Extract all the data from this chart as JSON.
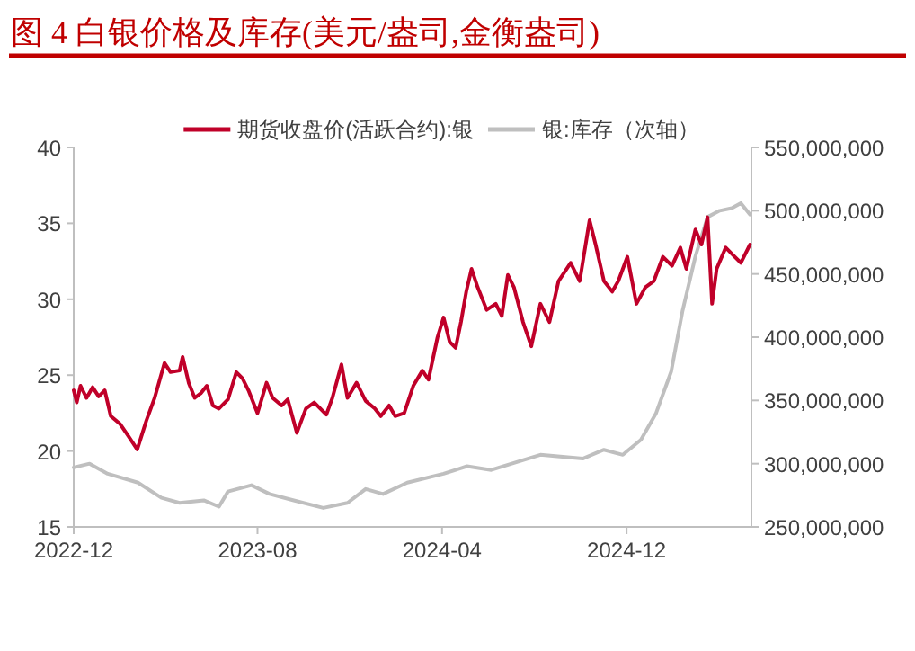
{
  "chart_data": {
    "type": "line",
    "title": "图 4 白银价格及库存(美元/盎司,金衡盎司)",
    "legend": "top",
    "grid": false,
    "marker": "none",
    "line_style": "solid",
    "xlim": [
      "2022-12-01",
      "2025-05-15"
    ],
    "xticks": [
      "2022-12",
      "2023-08",
      "2024-04",
      "2024-12"
    ],
    "ylim": [
      15,
      40
    ],
    "yticks": [
      15,
      20,
      25,
      30,
      35,
      40
    ],
    "y2lim": [
      250000000,
      550000000
    ],
    "y2ticks": [
      {
        "value": 250000000,
        "label": "250,000,000"
      },
      {
        "value": 300000000,
        "label": "300,000,000"
      },
      {
        "value": 350000000,
        "label": "350,000,000"
      },
      {
        "value": 400000000,
        "label": "400,000,000"
      },
      {
        "value": 450000000,
        "label": "450,000,000"
      },
      {
        "value": 500000000,
        "label": "500,000,000"
      },
      {
        "value": 550000000,
        "label": "550,000,000"
      }
    ],
    "series": [
      {
        "name": "期货收盘价(活跃合约):银",
        "color": "#c00029",
        "x": [
          "2022-12-01",
          "2022-12-05",
          "2022-12-10",
          "2022-12-18",
          "2022-12-26",
          "2023-01-03",
          "2023-01-11",
          "2023-01-19",
          "2023-01-31",
          "2023-02-11",
          "2023-02-23",
          "2023-03-07",
          "2023-03-18",
          "2023-03-31",
          "2023-04-08",
          "2023-04-20",
          "2023-04-24",
          "2023-05-02",
          "2023-05-10",
          "2023-05-18",
          "2023-05-26",
          "2023-06-03",
          "2023-06-11",
          "2023-06-23",
          "2023-07-04",
          "2023-07-12",
          "2023-07-20",
          "2023-08-01",
          "2023-08-13",
          "2023-08-21",
          "2023-09-02",
          "2023-09-10",
          "2023-09-22",
          "2023-10-04",
          "2023-10-15",
          "2023-10-23",
          "2023-10-31",
          "2023-11-08",
          "2023-11-20",
          "2023-11-28",
          "2023-12-10",
          "2023-12-22",
          "2024-01-03",
          "2024-01-11",
          "2024-01-22",
          "2024-01-30",
          "2024-02-11",
          "2024-02-23",
          "2024-03-06",
          "2024-03-14",
          "2024-03-26",
          "2024-04-03",
          "2024-04-11",
          "2024-04-19",
          "2024-04-26",
          "2024-05-03",
          "2024-05-10",
          "2024-05-18",
          "2024-05-30",
          "2024-06-11",
          "2024-06-19",
          "2024-06-27",
          "2024-07-05",
          "2024-07-17",
          "2024-07-28",
          "2024-08-09",
          "2024-08-21",
          "2024-09-02",
          "2024-09-18",
          "2024-09-30",
          "2024-10-13",
          "2024-10-21",
          "2024-11-01",
          "2024-11-12",
          "2024-11-20",
          "2024-12-02",
          "2024-12-14",
          "2024-12-26",
          "2025-01-06",
          "2025-01-18",
          "2025-01-30",
          "2025-02-10",
          "2025-02-18",
          "2025-03-02",
          "2025-03-10",
          "2025-03-18",
          "2025-03-24",
          "2025-03-30",
          "2025-04-11",
          "2025-04-23",
          "2025-05-01",
          "2025-05-13"
        ],
        "values": [
          24.0,
          23.2,
          24.3,
          23.5,
          24.2,
          23.6,
          24.0,
          22.3,
          21.8,
          21.0,
          20.1,
          22.0,
          23.5,
          25.8,
          25.2,
          25.3,
          26.2,
          24.5,
          23.5,
          23.8,
          24.3,
          23.0,
          22.8,
          23.4,
          25.2,
          24.8,
          24.0,
          22.5,
          24.5,
          23.5,
          23.0,
          23.4,
          21.2,
          22.8,
          23.2,
          22.8,
          22.4,
          23.5,
          25.7,
          23.5,
          24.5,
          23.3,
          22.8,
          22.3,
          23.0,
          22.3,
          22.5,
          24.3,
          25.3,
          24.7,
          27.5,
          28.8,
          27.2,
          26.8,
          28.5,
          30.5,
          32.0,
          30.8,
          29.3,
          29.7,
          28.9,
          31.6,
          30.8,
          28.5,
          26.9,
          29.7,
          28.5,
          31.2,
          32.4,
          31.2,
          35.2,
          33.6,
          31.2,
          30.5,
          31.2,
          32.8,
          29.7,
          30.8,
          31.2,
          32.8,
          32.2,
          33.4,
          32.0,
          34.6,
          33.6,
          35.4,
          29.7,
          32.0,
          33.4,
          32.8,
          32.4,
          33.6
        ]
      },
      {
        "name": "银:库存（次轴）",
        "color": "#bfbfbf",
        "axis": "y2",
        "x": [
          "2022-12-01",
          "2022-12-22",
          "2023-01-15",
          "2023-02-24",
          "2023-03-27",
          "2023-04-20",
          "2023-05-22",
          "2023-06-11",
          "2023-06-23",
          "2023-07-24",
          "2023-08-17",
          "2023-09-18",
          "2023-10-27",
          "2023-11-28",
          "2023-12-22",
          "2024-01-14",
          "2024-02-15",
          "2024-04-03",
          "2024-05-04",
          "2024-06-05",
          "2024-08-09",
          "2024-10-04",
          "2024-11-01",
          "2024-11-26",
          "2024-12-20",
          "2025-01-09",
          "2025-01-29",
          "2025-02-13",
          "2025-03-02",
          "2025-03-18",
          "2025-04-03",
          "2025-04-19",
          "2025-05-01",
          "2025-05-13"
        ],
        "values": [
          297000000,
          300000000,
          292000000,
          285000000,
          273000000,
          269000000,
          271000000,
          266000000,
          278000000,
          283000000,
          276000000,
          271000000,
          265000000,
          269000000,
          280000000,
          276000000,
          285000000,
          292000000,
          298000000,
          295000000,
          307000000,
          304000000,
          311000000,
          307000000,
          319000000,
          340000000,
          373000000,
          421000000,
          464000000,
          495000000,
          500000000,
          502000000,
          506000000,
          497000000
        ]
      }
    ]
  }
}
